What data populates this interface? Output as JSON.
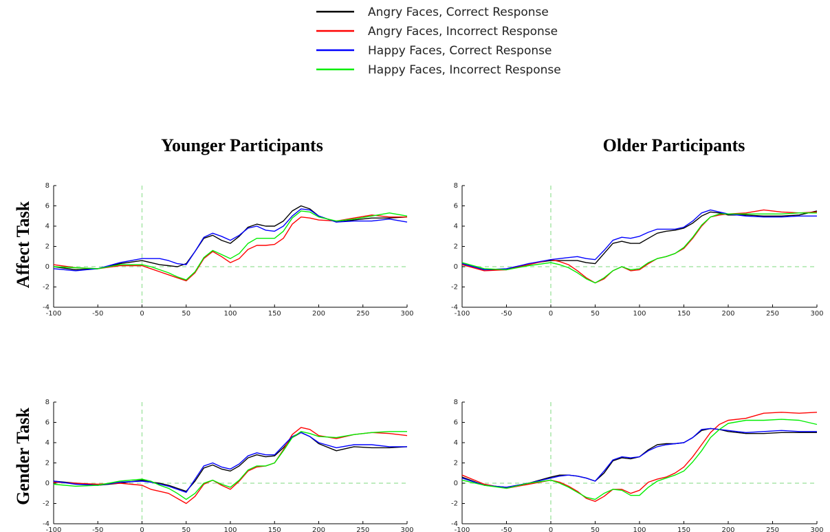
{
  "column_titles": [
    "Younger Participants",
    "Older Participants"
  ],
  "row_titles": [
    "Affect Task",
    "Gender Task"
  ],
  "chart_data": [
    {
      "type": "line",
      "x": [
        -100,
        -75,
        -50,
        -25,
        0,
        10,
        20,
        30,
        40,
        50,
        60,
        70,
        80,
        90,
        100,
        110,
        120,
        130,
        140,
        150,
        160,
        170,
        180,
        190,
        200,
        220,
        240,
        260,
        280,
        300
      ],
      "xlim": [
        -100,
        300
      ],
      "ylim": [
        -4,
        8
      ],
      "xticks": [
        -100,
        -50,
        0,
        50,
        100,
        150,
        200,
        250,
        300
      ],
      "yticks": [
        -4,
        -2,
        0,
        2,
        4,
        6,
        8
      ],
      "reference_x": 0,
      "reference_y": 0,
      "series": [
        {
          "name": "Angry Faces, Correct Response",
          "color": "#000000",
          "values": [
            0,
            -0.3,
            -0.2,
            0.3,
            0.6,
            0.4,
            0.2,
            0.1,
            0,
            0.3,
            1.5,
            2.8,
            3.1,
            2.6,
            2.3,
            3.0,
            3.9,
            4.2,
            4.0,
            4.0,
            4.5,
            5.5,
            6.0,
            5.7,
            5.0,
            4.4,
            4.6,
            4.8,
            4.8,
            4.9
          ]
        },
        {
          "name": "Angry Faces, Incorrect Response",
          "color": "#ff0000",
          "values": [
            0.2,
            -0.1,
            -0.2,
            0.1,
            0.1,
            -0.2,
            -0.5,
            -0.8,
            -1.1,
            -1.4,
            -0.6,
            0.8,
            1.5,
            1.0,
            0.4,
            0.8,
            1.7,
            2.1,
            2.1,
            2.2,
            2.8,
            4.2,
            4.9,
            4.8,
            4.6,
            4.5,
            4.8,
            5.1,
            4.9,
            4.9
          ]
        },
        {
          "name": "Happy Faces, Correct Response",
          "color": "#0000ff",
          "values": [
            -0.2,
            -0.4,
            -0.2,
            0.4,
            0.8,
            0.8,
            0.8,
            0.6,
            0.3,
            0.2,
            1.5,
            2.9,
            3.3,
            3.0,
            2.6,
            3.1,
            3.8,
            4.0,
            3.6,
            3.5,
            4.0,
            5.0,
            5.7,
            5.6,
            5.0,
            4.4,
            4.5,
            4.5,
            4.7,
            4.4
          ]
        },
        {
          "name": "Happy Faces, Incorrect Response",
          "color": "#00ee00",
          "values": [
            0,
            -0.1,
            -0.2,
            0.2,
            0.2,
            0,
            -0.3,
            -0.6,
            -1.0,
            -1.3,
            -0.5,
            0.9,
            1.6,
            1.2,
            0.8,
            1.3,
            2.3,
            2.8,
            2.8,
            2.8,
            3.5,
            4.8,
            5.5,
            5.4,
            4.9,
            4.5,
            4.7,
            5.0,
            5.3,
            5.0
          ]
        }
      ]
    },
    {
      "type": "line",
      "x": [
        -100,
        -75,
        -50,
        -25,
        0,
        10,
        20,
        30,
        40,
        50,
        60,
        70,
        80,
        90,
        100,
        110,
        120,
        130,
        140,
        150,
        160,
        170,
        180,
        190,
        200,
        220,
        240,
        260,
        280,
        300
      ],
      "xlim": [
        -100,
        300
      ],
      "ylim": [
        -4,
        8
      ],
      "xticks": [
        -100,
        -50,
        0,
        50,
        100,
        150,
        200,
        250,
        300
      ],
      "yticks": [
        -4,
        -2,
        0,
        2,
        4,
        6,
        8
      ],
      "reference_x": 0,
      "reference_y": 0,
      "series": [
        {
          "name": "Angry Faces, Correct Response",
          "color": "#000000",
          "values": [
            0.3,
            -0.3,
            -0.3,
            0.3,
            0.6,
            0.6,
            0.6,
            0.6,
            0.4,
            0.3,
            1.3,
            2.3,
            2.5,
            2.3,
            2.3,
            2.8,
            3.3,
            3.5,
            3.6,
            3.8,
            4.3,
            5.0,
            5.4,
            5.3,
            5.1,
            5.1,
            5.0,
            5.0,
            5.1,
            5.5
          ]
        },
        {
          "name": "Angry Faces, Incorrect Response",
          "color": "#ff0000",
          "values": [
            0.2,
            -0.4,
            -0.3,
            0.2,
            0.7,
            0.5,
            0.2,
            -0.4,
            -1.1,
            -1.6,
            -1.2,
            -0.4,
            0,
            -0.4,
            -0.3,
            0.3,
            0.8,
            1.0,
            1.3,
            1.8,
            2.8,
            4.0,
            4.9,
            5.1,
            5.2,
            5.3,
            5.6,
            5.4,
            5.3,
            5.4
          ]
        },
        {
          "name": "Happy Faces, Correct Response",
          "color": "#0000ff",
          "values": [
            0.3,
            -0.3,
            -0.2,
            0.3,
            0.7,
            0.8,
            0.9,
            1.0,
            0.8,
            0.7,
            1.6,
            2.6,
            2.9,
            2.8,
            3.0,
            3.4,
            3.7,
            3.7,
            3.7,
            3.9,
            4.5,
            5.3,
            5.6,
            5.4,
            5.2,
            5.0,
            4.9,
            4.9,
            5.0,
            5.0
          ]
        },
        {
          "name": "Happy Faces, Incorrect Response",
          "color": "#00ee00",
          "values": [
            0.4,
            -0.2,
            -0.3,
            0.1,
            0.4,
            0.2,
            -0.1,
            -0.6,
            -1.2,
            -1.6,
            -1.1,
            -0.4,
            0,
            -0.3,
            -0.2,
            0.4,
            0.8,
            1.0,
            1.3,
            1.9,
            2.9,
            4.1,
            4.9,
            5.2,
            5.2,
            5.2,
            5.2,
            5.2,
            5.3,
            5.3
          ]
        }
      ]
    },
    {
      "type": "line",
      "x": [
        -100,
        -75,
        -50,
        -25,
        0,
        10,
        20,
        30,
        40,
        50,
        60,
        70,
        80,
        90,
        100,
        110,
        120,
        130,
        140,
        150,
        160,
        170,
        180,
        190,
        200,
        220,
        240,
        260,
        280,
        300
      ],
      "xlim": [
        -100,
        300
      ],
      "ylim": [
        -4,
        8
      ],
      "xticks": [
        -100,
        -50,
        0,
        50,
        100,
        150,
        200,
        250,
        300
      ],
      "yticks": [
        -4,
        -2,
        0,
        2,
        4,
        6,
        8
      ],
      "reference_x": 0,
      "reference_y": 0,
      "series": [
        {
          "name": "Angry Faces, Correct Response",
          "color": "#000000",
          "values": [
            0.2,
            0,
            -0.2,
            0,
            0.3,
            0.1,
            0,
            -0.2,
            -0.5,
            -0.8,
            0.2,
            1.5,
            1.8,
            1.4,
            1.2,
            1.7,
            2.5,
            2.8,
            2.6,
            2.7,
            3.5,
            4.5,
            5.0,
            4.6,
            3.9,
            3.2,
            3.6,
            3.5,
            3.5,
            3.6
          ]
        },
        {
          "name": "Angry Faces, Incorrect Response",
          "color": "#ff0000",
          "values": [
            0.1,
            0,
            -0.1,
            0,
            -0.2,
            -0.6,
            -0.8,
            -1.0,
            -1.5,
            -2.0,
            -1.3,
            -0.1,
            0.3,
            -0.2,
            -0.6,
            0.2,
            1.2,
            1.6,
            1.7,
            2.0,
            3.3,
            4.8,
            5.5,
            5.3,
            4.7,
            4.4,
            4.8,
            5.0,
            4.9,
            4.7
          ]
        },
        {
          "name": "Happy Faces, Correct Response",
          "color": "#0000ff",
          "values": [
            0.2,
            -0.1,
            -0.2,
            0.1,
            0.2,
            0.1,
            -0.1,
            -0.3,
            -0.6,
            -0.9,
            0.4,
            1.7,
            2.0,
            1.6,
            1.4,
            1.9,
            2.7,
            3.0,
            2.8,
            2.8,
            3.7,
            4.6,
            5.0,
            4.6,
            4.0,
            3.5,
            3.8,
            3.8,
            3.6,
            3.6
          ]
        },
        {
          "name": "Happy Faces, Incorrect Response",
          "color": "#00ee00",
          "values": [
            -0.1,
            -0.3,
            -0.2,
            0.2,
            0.4,
            0.2,
            -0.2,
            -0.5,
            -1.0,
            -1.6,
            -1.0,
            0,
            0.3,
            -0.1,
            -0.4,
            0.3,
            1.3,
            1.7,
            1.7,
            2.0,
            3.2,
            4.5,
            5.1,
            4.9,
            4.6,
            4.5,
            4.8,
            5.0,
            5.1,
            5.1
          ]
        }
      ]
    },
    {
      "type": "line",
      "x": [
        -100,
        -75,
        -50,
        -25,
        0,
        10,
        20,
        30,
        40,
        50,
        60,
        70,
        80,
        90,
        100,
        110,
        120,
        130,
        140,
        150,
        160,
        170,
        180,
        190,
        200,
        220,
        240,
        260,
        280,
        300
      ],
      "xlim": [
        -100,
        300
      ],
      "ylim": [
        -4,
        8
      ],
      "xticks": [
        -100,
        -50,
        0,
        50,
        100,
        150,
        200,
        250,
        300
      ],
      "yticks": [
        -4,
        -2,
        0,
        2,
        4,
        6,
        8
      ],
      "reference_x": 0,
      "reference_y": 0,
      "series": [
        {
          "name": "Angry Faces, Correct Response",
          "color": "#000000",
          "values": [
            0.6,
            -0.2,
            -0.4,
            0,
            0.6,
            0.8,
            0.8,
            0.7,
            0.5,
            0.2,
            1.0,
            2.2,
            2.5,
            2.4,
            2.6,
            3.3,
            3.8,
            3.9,
            3.9,
            4.0,
            4.5,
            5.2,
            5.4,
            5.3,
            5.1,
            4.9,
            4.9,
            5.0,
            5.0,
            5.0
          ]
        },
        {
          "name": "Angry Faces, Incorrect Response",
          "color": "#ff0000",
          "values": [
            0.8,
            -0.1,
            -0.5,
            -0.1,
            0.3,
            0.1,
            -0.3,
            -0.8,
            -1.5,
            -1.8,
            -1.3,
            -0.6,
            -0.6,
            -1.0,
            -0.7,
            0.1,
            0.4,
            0.6,
            1.0,
            1.6,
            2.6,
            3.8,
            5.0,
            5.8,
            6.2,
            6.4,
            6.9,
            7.0,
            6.9,
            7.0
          ]
        },
        {
          "name": "Happy Faces, Correct Response",
          "color": "#0000ff",
          "values": [
            0.5,
            -0.2,
            -0.4,
            0,
            0.5,
            0.7,
            0.8,
            0.7,
            0.5,
            0.2,
            1.2,
            2.3,
            2.6,
            2.5,
            2.6,
            3.2,
            3.6,
            3.8,
            3.9,
            4.0,
            4.5,
            5.3,
            5.4,
            5.3,
            5.2,
            5.0,
            5.1,
            5.2,
            5.1,
            5.1
          ]
        },
        {
          "name": "Happy Faces, Incorrect Response",
          "color": "#00ee00",
          "values": [
            0.3,
            -0.2,
            -0.5,
            0,
            0.3,
            0,
            -0.4,
            -0.9,
            -1.4,
            -1.6,
            -1.0,
            -0.6,
            -0.7,
            -1.2,
            -1.2,
            -0.4,
            0.2,
            0.5,
            0.8,
            1.2,
            2.1,
            3.2,
            4.5,
            5.3,
            5.9,
            6.2,
            6.2,
            6.3,
            6.2,
            5.8
          ]
        }
      ]
    }
  ]
}
